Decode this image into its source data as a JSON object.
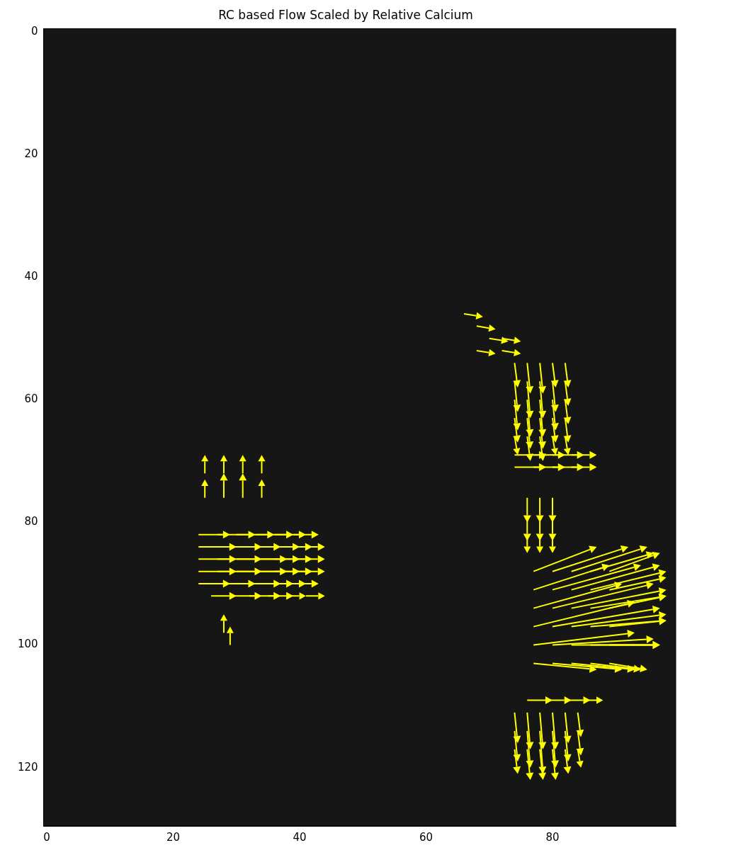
{
  "chart_data": {
    "type": "quiver",
    "title": "RC based Flow Scaled by Relative Calcium",
    "color": "#ffff00",
    "grid": false,
    "xlim": [
      -0.5,
      99.5
    ],
    "xticks": [
      0,
      20,
      40,
      60,
      80
    ],
    "ylim": [
      129.5,
      -0.5
    ],
    "yticks": [
      0,
      20,
      40,
      60,
      80,
      100,
      120
    ],
    "vectors": [
      [
        24,
        82,
        5,
        0
      ],
      [
        27,
        82,
        6,
        0
      ],
      [
        30,
        82,
        6,
        0
      ],
      [
        33,
        82,
        6,
        0
      ],
      [
        36,
        82,
        5,
        0
      ],
      [
        39,
        82,
        4,
        0
      ],
      [
        24,
        84,
        6,
        0
      ],
      [
        27,
        84,
        7,
        0
      ],
      [
        30,
        84,
        7,
        0
      ],
      [
        33,
        84,
        7,
        0
      ],
      [
        36,
        84,
        6,
        0
      ],
      [
        39,
        84,
        5,
        0
      ],
      [
        24,
        86,
        6,
        0
      ],
      [
        27,
        86,
        7,
        0
      ],
      [
        30,
        86,
        8,
        0
      ],
      [
        33,
        86,
        7,
        0
      ],
      [
        36,
        86,
        6,
        0
      ],
      [
        39,
        86,
        5,
        0
      ],
      [
        24,
        88,
        6,
        0
      ],
      [
        27,
        88,
        7,
        0
      ],
      [
        30,
        88,
        8,
        0
      ],
      [
        33,
        88,
        7,
        0
      ],
      [
        36,
        88,
        6,
        0
      ],
      [
        39,
        88,
        5,
        0
      ],
      [
        24,
        90,
        5,
        0
      ],
      [
        27,
        90,
        6,
        0
      ],
      [
        30,
        90,
        7,
        0
      ],
      [
        33,
        90,
        6,
        0
      ],
      [
        36,
        90,
        5,
        0
      ],
      [
        39,
        90,
        4,
        0
      ],
      [
        26,
        92,
        4,
        0
      ],
      [
        29,
        92,
        5,
        0
      ],
      [
        32,
        92,
        5,
        0
      ],
      [
        35,
        92,
        4,
        0
      ],
      [
        38,
        92,
        3,
        0
      ],
      [
        41,
        92,
        3,
        0
      ],
      [
        25,
        72,
        0,
        -3
      ],
      [
        28,
        72,
        0,
        -3
      ],
      [
        31,
        72,
        0,
        -3
      ],
      [
        34,
        72,
        0,
        -3
      ],
      [
        25,
        76,
        0,
        -3
      ],
      [
        28,
        76,
        0,
        -4
      ],
      [
        31,
        76,
        0,
        -4
      ],
      [
        34,
        76,
        0,
        -3
      ],
      [
        28,
        98,
        0,
        -3
      ],
      [
        29,
        100,
        0,
        -3
      ],
      [
        66,
        46,
        3,
        0.5
      ],
      [
        68,
        48,
        3,
        0.5
      ],
      [
        70,
        50,
        3,
        0.5
      ],
      [
        72,
        50,
        3,
        0.5
      ],
      [
        68,
        52,
        3,
        0.5
      ],
      [
        72,
        52,
        3,
        0.5
      ],
      [
        74,
        54,
        0.5,
        4
      ],
      [
        76,
        54,
        0.5,
        5
      ],
      [
        78,
        54,
        0.5,
        5
      ],
      [
        80,
        54,
        0.5,
        4
      ],
      [
        82,
        54,
        0.5,
        4
      ],
      [
        74,
        57,
        0.5,
        5
      ],
      [
        76,
        57,
        0.5,
        6
      ],
      [
        78,
        57,
        0.5,
        6
      ],
      [
        80,
        57,
        0.5,
        5
      ],
      [
        82,
        57,
        0.5,
        4
      ],
      [
        74,
        60,
        0.5,
        5
      ],
      [
        76,
        60,
        0.5,
        6
      ],
      [
        78,
        60,
        0.5,
        6
      ],
      [
        80,
        60,
        0.5,
        5
      ],
      [
        82,
        60,
        0.5,
        4
      ],
      [
        74,
        63,
        0.5,
        4
      ],
      [
        76,
        63,
        0.5,
        5
      ],
      [
        78,
        63,
        0.5,
        5
      ],
      [
        80,
        63,
        0.5,
        4
      ],
      [
        82,
        63,
        0.5,
        4
      ],
      [
        74,
        66,
        0.5,
        3
      ],
      [
        76,
        66,
        0.5,
        4
      ],
      [
        78,
        66,
        0.5,
        4
      ],
      [
        80,
        66,
        0.5,
        3
      ],
      [
        82,
        66,
        0.5,
        3
      ],
      [
        74,
        69,
        5,
        0
      ],
      [
        77,
        69,
        5,
        0
      ],
      [
        80,
        69,
        5,
        0
      ],
      [
        83,
        69,
        4,
        0
      ],
      [
        74,
        71,
        5,
        0
      ],
      [
        77,
        71,
        5,
        0
      ],
      [
        80,
        71,
        5,
        0
      ],
      [
        83,
        71,
        4,
        0
      ],
      [
        76,
        76,
        0,
        4
      ],
      [
        78,
        76,
        0,
        4
      ],
      [
        80,
        76,
        0,
        4
      ],
      [
        76,
        79,
        0,
        4
      ],
      [
        78,
        79,
        0,
        4
      ],
      [
        80,
        79,
        0,
        4
      ],
      [
        76,
        82,
        0,
        3
      ],
      [
        78,
        82,
        0,
        3
      ],
      [
        80,
        82,
        0,
        3
      ],
      [
        77,
        88,
        10,
        -4
      ],
      [
        80,
        88,
        12,
        -4
      ],
      [
        83,
        88,
        12,
        -4
      ],
      [
        86,
        88,
        10,
        -3
      ],
      [
        89,
        88,
        8,
        -3
      ],
      [
        77,
        91,
        12,
        -4
      ],
      [
        80,
        91,
        14,
        -4
      ],
      [
        83,
        91,
        14,
        -4
      ],
      [
        86,
        91,
        12,
        -3
      ],
      [
        89,
        91,
        9,
        -2
      ],
      [
        77,
        94,
        14,
        -4
      ],
      [
        80,
        94,
        16,
        -4
      ],
      [
        83,
        94,
        15,
        -3
      ],
      [
        86,
        94,
        12,
        -2
      ],
      [
        89,
        94,
        9,
        -2
      ],
      [
        77,
        97,
        16,
        -4
      ],
      [
        80,
        97,
        17,
        -3
      ],
      [
        83,
        97,
        15,
        -2
      ],
      [
        86,
        97,
        12,
        -1
      ],
      [
        89,
        97,
        9,
        -1
      ],
      [
        77,
        100,
        16,
        -2
      ],
      [
        80,
        100,
        16,
        -1
      ],
      [
        83,
        100,
        14,
        0
      ],
      [
        86,
        100,
        11,
        0
      ],
      [
        89,
        100,
        8,
        0
      ],
      [
        77,
        103,
        10,
        1
      ],
      [
        80,
        103,
        11,
        1
      ],
      [
        83,
        103,
        10,
        1
      ],
      [
        86,
        103,
        8,
        1
      ],
      [
        89,
        103,
        6,
        1
      ],
      [
        76,
        109,
        4,
        0
      ],
      [
        79,
        109,
        4,
        0
      ],
      [
        82,
        109,
        4,
        0
      ],
      [
        85,
        109,
        3,
        0
      ],
      [
        74,
        111,
        0.5,
        5
      ],
      [
        76,
        111,
        0.5,
        6
      ],
      [
        78,
        111,
        0.5,
        6
      ],
      [
        80,
        111,
        0.5,
        6
      ],
      [
        82,
        111,
        0.5,
        5
      ],
      [
        84,
        111,
        0.5,
        4
      ],
      [
        74,
        114,
        0.5,
        5
      ],
      [
        76,
        114,
        0.5,
        6
      ],
      [
        78,
        114,
        0.5,
        7
      ],
      [
        80,
        114,
        0.5,
        6
      ],
      [
        82,
        114,
        0.5,
        5
      ],
      [
        84,
        114,
        0.5,
        4
      ],
      [
        74,
        117,
        0.5,
        4
      ],
      [
        76,
        117,
        0.5,
        5
      ],
      [
        78,
        117,
        0.5,
        5
      ],
      [
        80,
        117,
        0.5,
        5
      ],
      [
        82,
        117,
        0.5,
        4
      ],
      [
        84,
        117,
        0.5,
        3
      ]
    ]
  }
}
